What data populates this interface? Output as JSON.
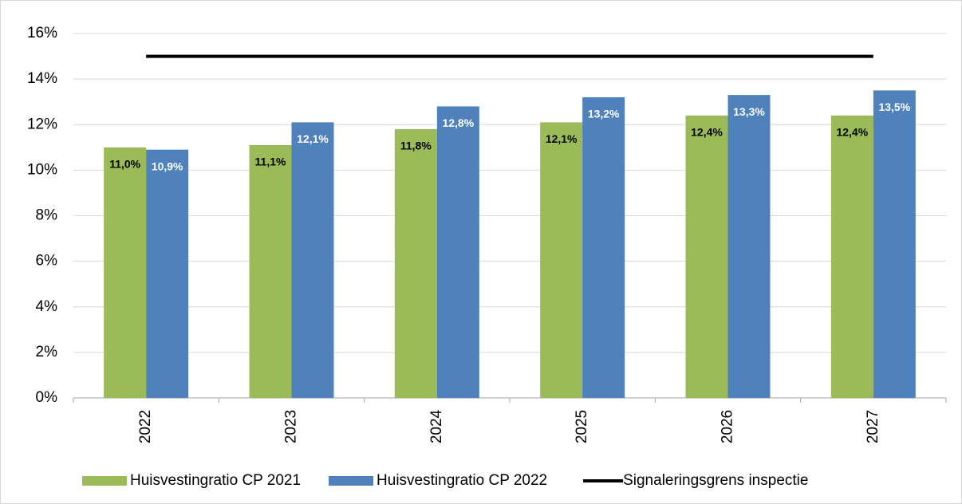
{
  "chart_data": {
    "type": "bar",
    "categories": [
      "2022",
      "2023",
      "2024",
      "2025",
      "2026",
      "2027"
    ],
    "series": [
      {
        "name": "Huisvestingratio CP 2021",
        "color": "#9bbb59",
        "values": [
          11.0,
          11.1,
          11.8,
          12.1,
          12.4,
          12.4
        ],
        "value_labels": [
          "11,0%",
          "11,1%",
          "11,8%",
          "12,1%",
          "12,4%",
          "12,4%"
        ],
        "label_color": "#000000"
      },
      {
        "name": "Huisvestingratio CP 2022",
        "color": "#4f81bd",
        "values": [
          10.9,
          12.1,
          12.8,
          13.2,
          13.3,
          13.5
        ],
        "value_labels": [
          "10,9%",
          "12,1%",
          "12,8%",
          "13,2%",
          "13,3%",
          "13,5%"
        ],
        "label_color": "#ffffff"
      },
      {
        "name": "Signaleringsgrens inspectie",
        "type": "line",
        "color": "#000000",
        "values": [
          15,
          15,
          15,
          15,
          15,
          15
        ]
      }
    ],
    "ylim": [
      0,
      16
    ],
    "yticks": [
      {
        "value": 0,
        "label": "0%"
      },
      {
        "value": 2,
        "label": "2%"
      },
      {
        "value": 4,
        "label": "4%"
      },
      {
        "value": 6,
        "label": "6%"
      },
      {
        "value": 8,
        "label": "8%"
      },
      {
        "value": 10,
        "label": "10%"
      },
      {
        "value": 12,
        "label": "12%"
      },
      {
        "value": 14,
        "label": "14%"
      },
      {
        "value": 16,
        "label": "16%"
      }
    ],
    "grid": true,
    "legend": "bottom"
  }
}
